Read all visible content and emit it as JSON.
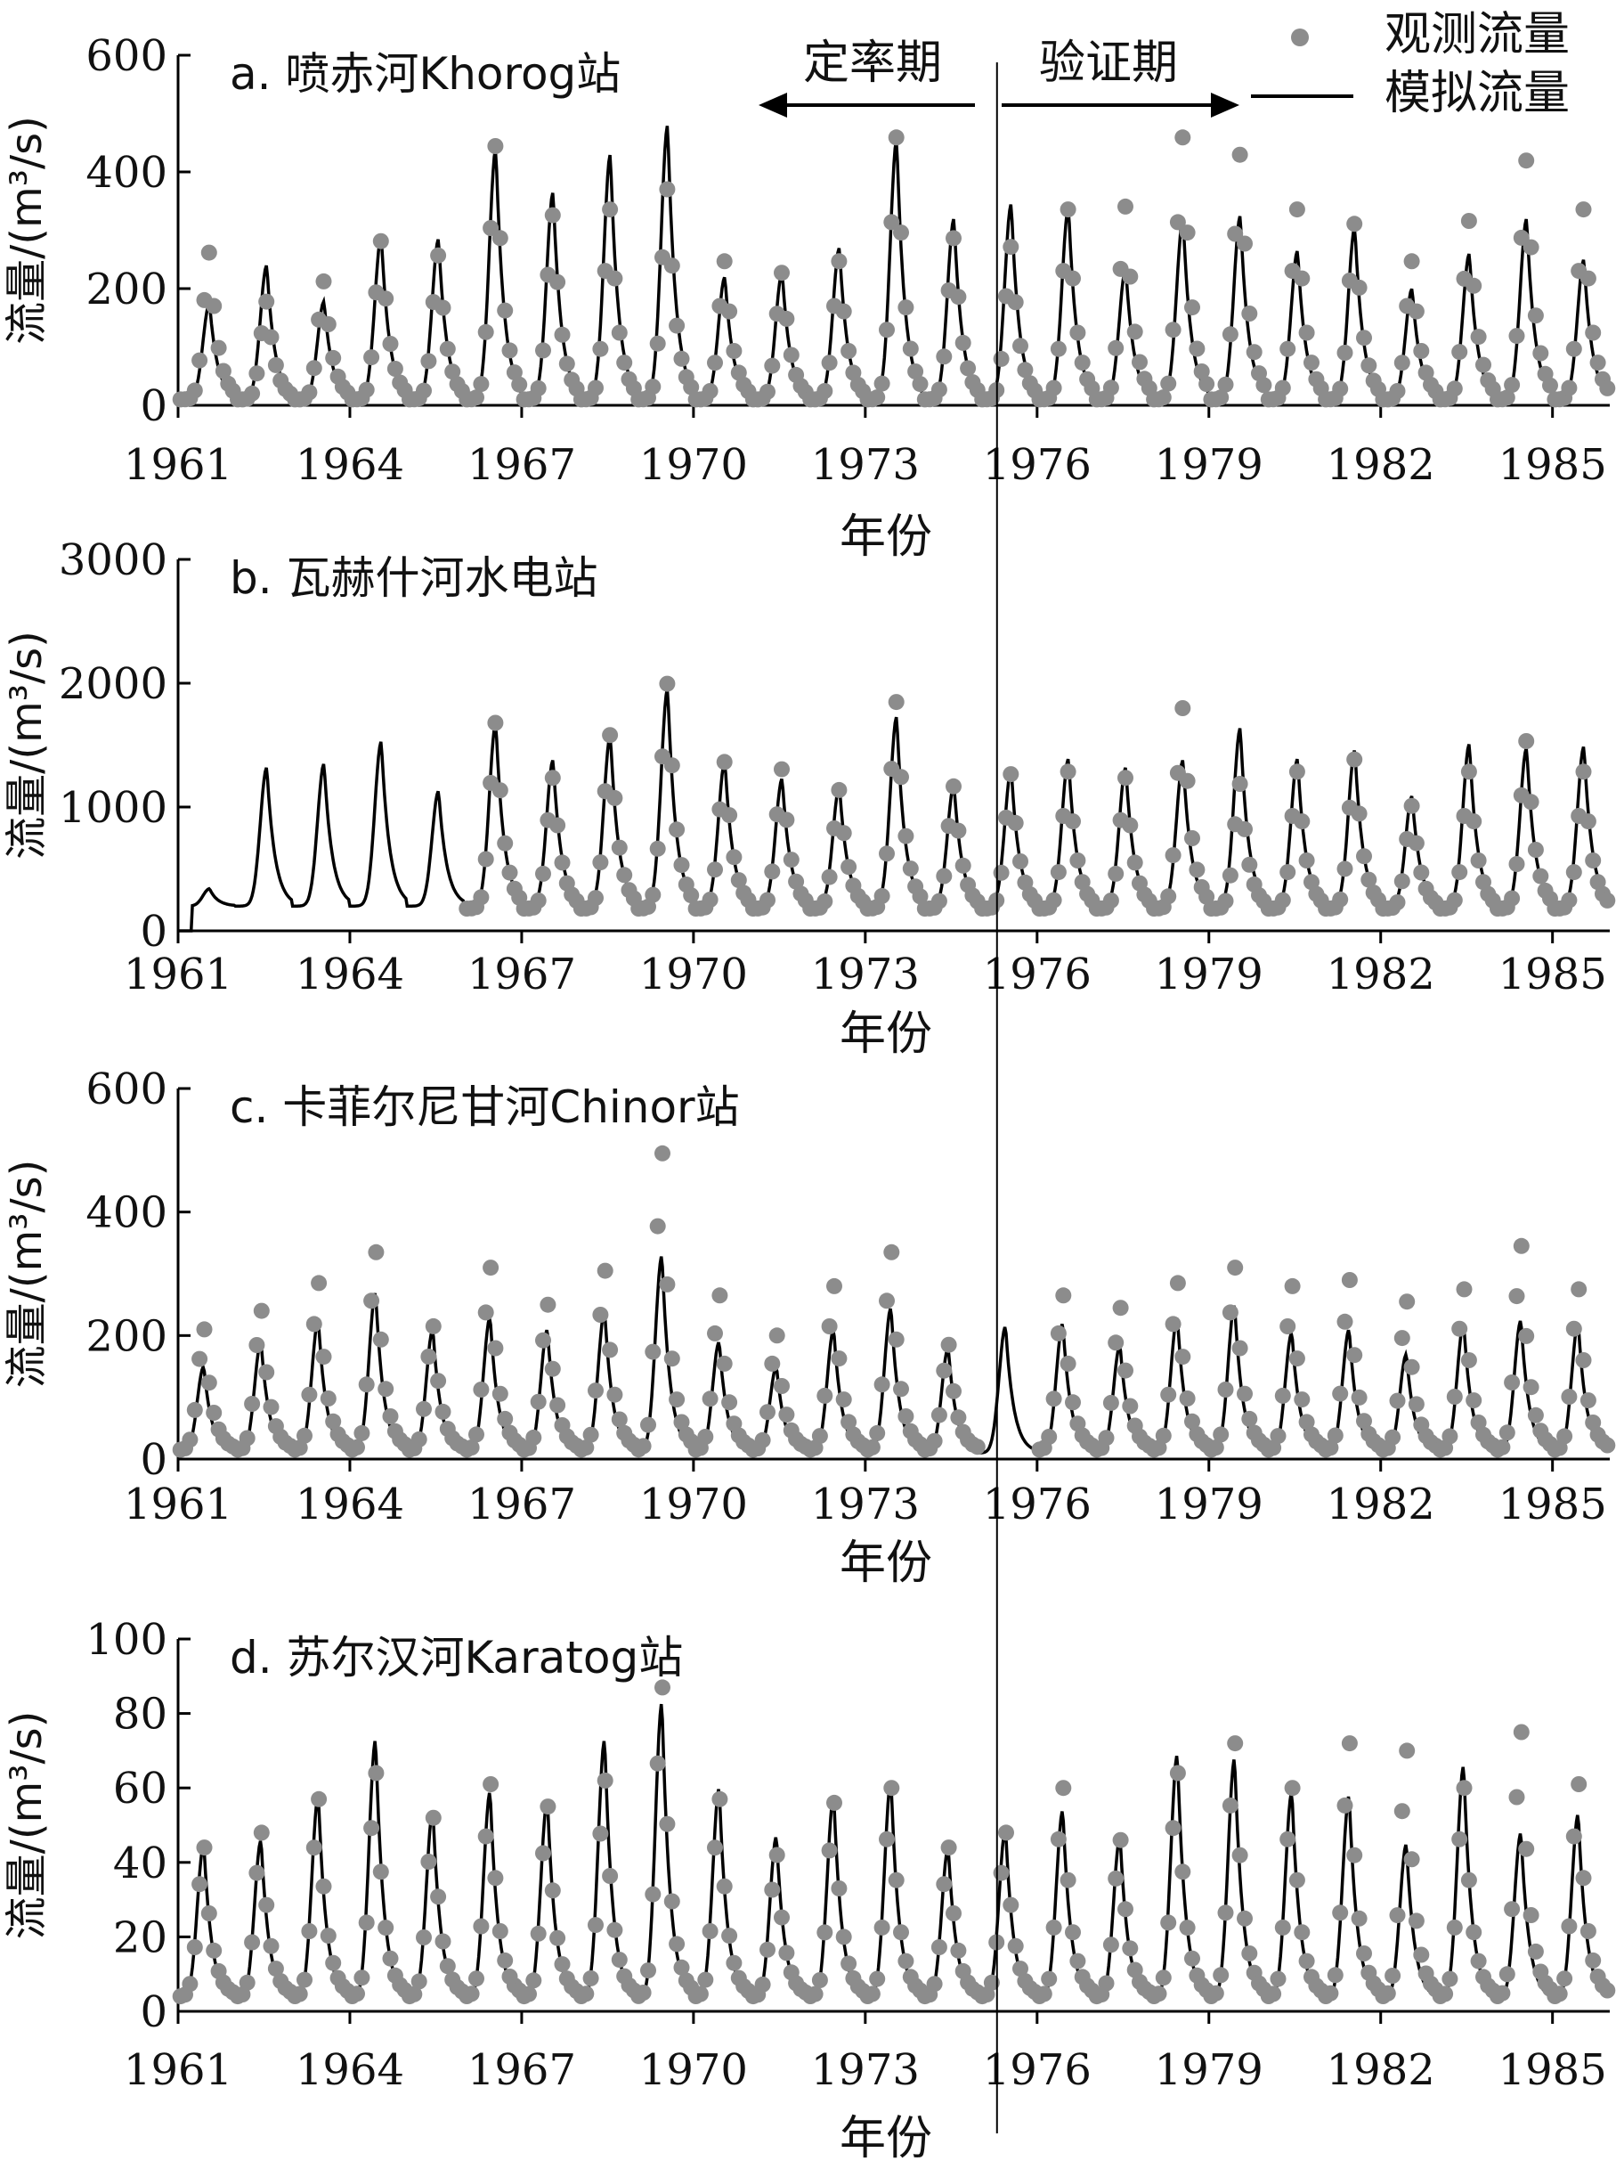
{
  "legend": {
    "observed": "观测流量",
    "simulated": "模拟流量"
  },
  "period": {
    "calibration": "定率期",
    "validation": "验证期",
    "split_year": 1975.3
  },
  "colors": {
    "observed": "#8c8c8c",
    "simulated": "#000000",
    "axis": "#000000"
  },
  "x_ticks": [
    "1961",
    "1964",
    "1967",
    "1970",
    "1973",
    "1976",
    "1979",
    "1982",
    "1985"
  ],
  "xlim": [
    1961,
    1986
  ],
  "chart_data": [
    {
      "type": "line",
      "title": "a. 喷赤河Khorog站",
      "xlabel": "年份",
      "ylabel": "流量/(m³/s)",
      "ylim": [
        0,
        600
      ],
      "yticks": [
        "0",
        "200",
        "400",
        "600"
      ],
      "obs_start": 1961,
      "peak_phase": 0.55,
      "series": [
        {
          "name": "模拟流量",
          "kind": "line",
          "base": 10,
          "peaks": [
            175,
            240,
            178,
            290,
            285,
            440,
            365,
            430,
            480,
            220,
            228,
            270,
            455,
            320,
            345,
            340,
            235,
            320,
            325,
            265,
            305,
            200,
            260,
            320,
            250
          ]
        },
        {
          "name": "观测流量",
          "kind": "scatter",
          "base": 10,
          "peaks": [
            265,
            180,
            215,
            285,
            260,
            450,
            330,
            340,
            375,
            250,
            230,
            250,
            465,
            290,
            275,
            340,
            345,
            465,
            435,
            340,
            315,
            250,
            320,
            425,
            340
          ]
        }
      ]
    },
    {
      "type": "line",
      "title": "b. 瓦赫什河水电站",
      "xlabel": "年份",
      "ylabel": "流量/(m³/s)",
      "ylim": [
        0,
        3000
      ],
      "yticks": [
        "0",
        "1000",
        "2000",
        "3000"
      ],
      "obs_start": 1966,
      "peak_phase": 0.55,
      "series": [
        {
          "name": "模拟流量",
          "kind": "line",
          "base": 200,
          "peaks": [
            340,
            1320,
            1350,
            1530,
            1130,
            1680,
            1380,
            1580,
            1960,
            1370,
            1230,
            1170,
            1730,
            1180,
            1300,
            1390,
            1320,
            1380,
            1640,
            1390,
            1460,
            1090,
            1510,
            1480,
            1490
          ]
        },
        {
          "name": "观测流量",
          "kind": "scatter",
          "base": 180,
          "peaks": [
            0,
            0,
            0,
            0,
            0,
            1700,
            1250,
            1600,
            2020,
            1380,
            1320,
            1150,
            1870,
            1180,
            1280,
            1300,
            1250,
            1820,
            1200,
            1300,
            1400,
            1020,
            1300,
            1550,
            1300
          ]
        }
      ]
    },
    {
      "type": "line",
      "title": "c. 卡菲尔尼甘河Chinor站",
      "xlabel": "年份",
      "ylabel": "流量/(m³/s)",
      "ylim": [
        0,
        600
      ],
      "yticks": [
        "0",
        "200",
        "400",
        "600"
      ],
      "obs_start": 1961,
      "peak_phase": 0.45,
      "series": [
        {
          "name": "模拟流量",
          "kind": "line",
          "base": 10,
          "peaks": [
            150,
            190,
            225,
            270,
            210,
            230,
            210,
            240,
            330,
            190,
            150,
            210,
            245,
            180,
            215,
            220,
            185,
            230,
            250,
            205,
            210,
            170,
            220,
            225,
            220
          ]
        },
        {
          "name": "观测流量",
          "kind": "scatter",
          "base": 15,
          "peaks": [
            210,
            240,
            285,
            335,
            215,
            310,
            250,
            305,
            495,
            265,
            200,
            280,
            335,
            185,
            0,
            265,
            245,
            285,
            310,
            280,
            290,
            255,
            275,
            345,
            275
          ]
        }
      ]
    },
    {
      "type": "line",
      "title": "d. 苏尔汉河Karatog站",
      "xlabel": "年份",
      "ylabel": "流量/(m³/s)",
      "ylim": [
        0,
        100
      ],
      "yticks": [
        "0",
        "20",
        "40",
        "60",
        "80",
        "100"
      ],
      "obs_start": 1961,
      "peak_phase": 0.45,
      "series": [
        {
          "name": "模拟流量",
          "kind": "line",
          "base": 3,
          "peaks": [
            45,
            46,
            58,
            73,
            54,
            59,
            57,
            73,
            83,
            60,
            47,
            58,
            62,
            44,
            49,
            54,
            47,
            69,
            68,
            59,
            58,
            45,
            66,
            48,
            53
          ]
        },
        {
          "name": "观测流量",
          "kind": "scatter",
          "base": 4,
          "peaks": [
            44,
            48,
            57,
            64,
            52,
            61,
            55,
            62,
            87,
            57,
            42,
            56,
            60,
            44,
            48,
            60,
            46,
            64,
            72,
            60,
            72,
            70,
            60,
            75,
            61
          ]
        }
      ]
    }
  ]
}
